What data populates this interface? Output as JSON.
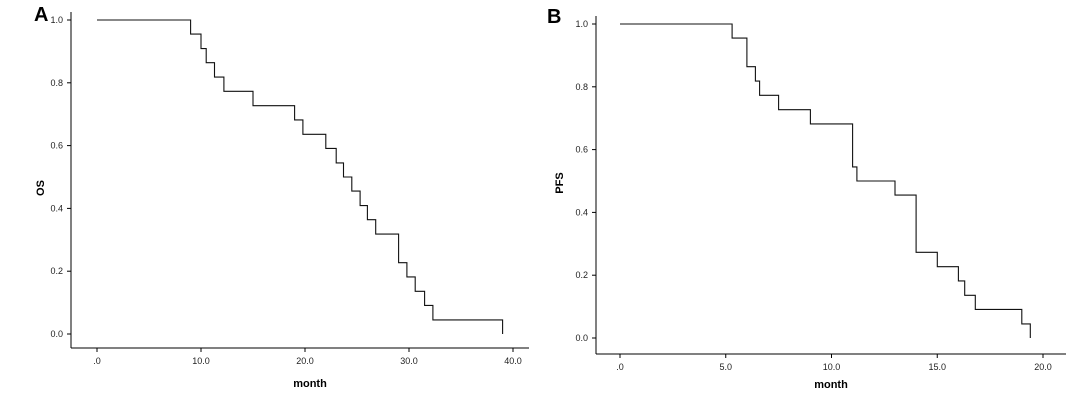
{
  "chart_data": [
    {
      "type": "line",
      "panel_label": "A",
      "xlabel": "month",
      "ylabel": "OS",
      "xlim": [
        0,
        40
      ],
      "ylim": [
        0,
        1
      ],
      "x_ticks": [
        0,
        10,
        20,
        30,
        40
      ],
      "x_tick_labels": [
        ".0",
        "10.0",
        "20.0",
        "30.0",
        "40.0"
      ],
      "y_ticks": [
        0,
        0.2,
        0.4,
        0.6,
        0.8,
        1.0
      ],
      "y_tick_labels": [
        "0.0",
        "0.2",
        "0.4",
        "0.6",
        "0.8",
        "1.0"
      ],
      "grid": false,
      "series": [
        {
          "step": "post",
          "x": [
            0,
            9,
            10,
            10.5,
            11.3,
            12.2,
            13.2,
            15,
            19,
            19.8,
            22,
            23,
            23.7,
            24.5,
            25.3,
            26,
            26.8,
            29,
            29.8,
            30.6,
            31.5,
            32.3,
            33,
            39
          ],
          "y": [
            1.0,
            0.955,
            0.909,
            0.864,
            0.818,
            0.773,
            0.773,
            0.727,
            0.682,
            0.636,
            0.591,
            0.545,
            0.5,
            0.455,
            0.409,
            0.364,
            0.318,
            0.227,
            0.182,
            0.136,
            0.091,
            0.045,
            0.045,
            0.0
          ]
        }
      ]
    },
    {
      "type": "line",
      "panel_label": "B",
      "xlabel": "month",
      "ylabel": "PFS",
      "xlim": [
        0,
        20
      ],
      "ylim": [
        0,
        1
      ],
      "x_ticks": [
        0,
        5,
        10,
        15,
        20
      ],
      "x_tick_labels": [
        ".0",
        "5.0",
        "10.0",
        "15.0",
        "20.0"
      ],
      "y_ticks": [
        0,
        0.2,
        0.4,
        0.6,
        0.8,
        1.0
      ],
      "y_tick_labels": [
        "0.0",
        "0.2",
        "0.4",
        "0.6",
        "0.8",
        "1.0"
      ],
      "grid": false,
      "series": [
        {
          "step": "post",
          "x": [
            0,
            5.3,
            6.0,
            6.4,
            6.6,
            7.5,
            9.0,
            11.0,
            11.2,
            11.4,
            13.0,
            14.0,
            15.0,
            16.0,
            16.3,
            16.8,
            19.0,
            19.4
          ],
          "y": [
            1.0,
            0.955,
            0.864,
            0.818,
            0.773,
            0.727,
            0.682,
            0.545,
            0.5,
            0.5,
            0.455,
            0.273,
            0.227,
            0.182,
            0.136,
            0.091,
            0.045,
            0.0
          ]
        }
      ]
    }
  ]
}
